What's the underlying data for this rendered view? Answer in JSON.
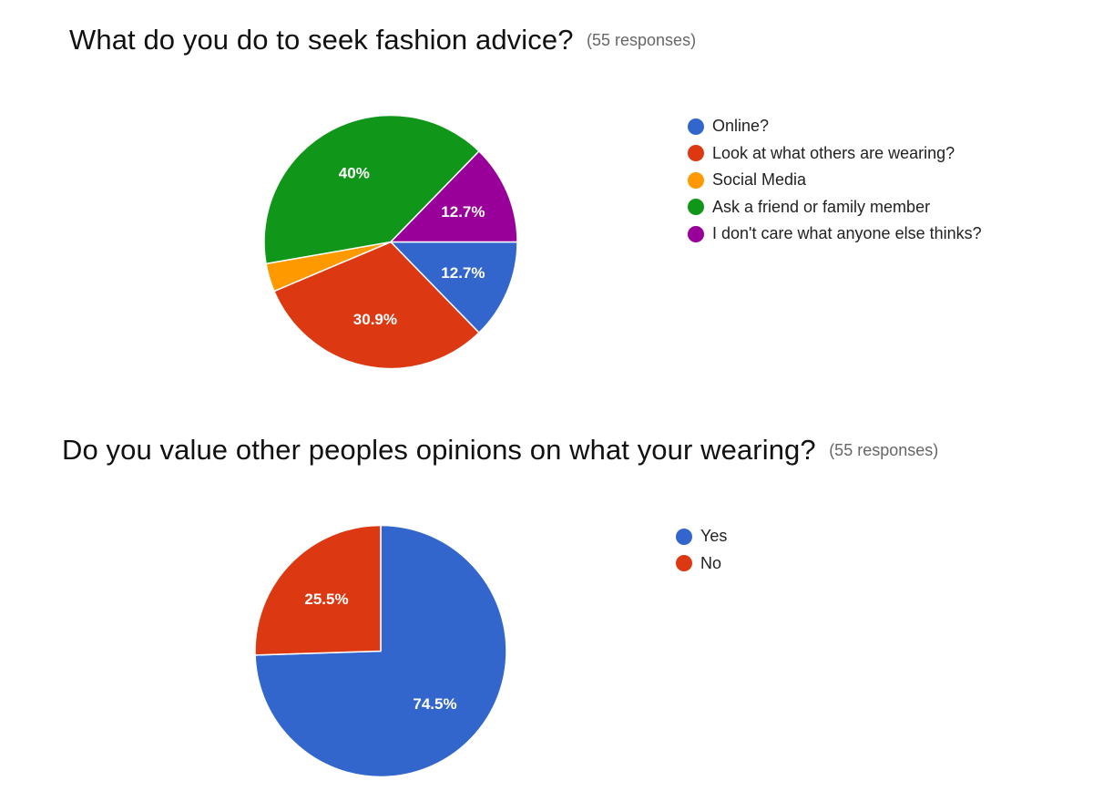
{
  "questions": [
    {
      "title": "What do you do to seek fashion advice?",
      "responses": "(55 responses)"
    },
    {
      "title": "Do you value other peoples opinions on what your wearing?",
      "responses": "(55 responses)"
    }
  ],
  "chart_data": [
    {
      "type": "pie",
      "title": "What do you do to seek fashion advice?",
      "categories": [
        "Online?",
        "Look at what others are wearing?",
        "Social Media",
        "Ask a friend or family member",
        "I don't care what anyone else thinks?"
      ],
      "values": [
        12.7,
        30.9,
        3.6,
        40.0,
        12.7
      ],
      "labels": [
        "12.7%",
        "30.9%",
        "",
        "40%",
        "12.7%"
      ],
      "colors": [
        "#3366cc",
        "#dc3912",
        "#ff9900",
        "#109618",
        "#990099"
      ],
      "unit": "%",
      "legend": "right"
    },
    {
      "type": "pie",
      "title": "Do you value other peoples opinions on what your wearing?",
      "categories": [
        "Yes",
        "No"
      ],
      "values": [
        74.5,
        25.5
      ],
      "labels": [
        "74.5%",
        "25.5%"
      ],
      "colors": [
        "#3366cc",
        "#dc3912"
      ],
      "unit": "%",
      "legend": "right"
    }
  ]
}
